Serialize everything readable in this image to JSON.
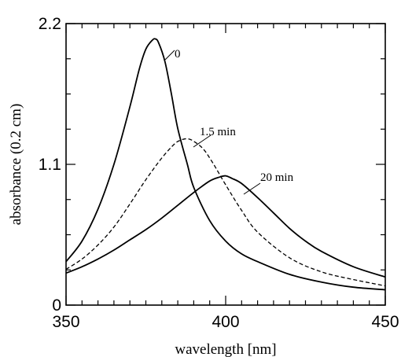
{
  "chart_data": {
    "type": "line",
    "xlabel": "wavelength [nm]",
    "ylabel": "absorbance (0.2 cm)",
    "xlim": [
      350,
      450
    ],
    "ylim": [
      0,
      2.2
    ],
    "x_ticks": [
      350,
      400,
      450
    ],
    "x_tick_labels": [
      "350",
      "400",
      "450"
    ],
    "y_ticks": [
      0,
      1.1,
      2.2
    ],
    "y_tick_labels": [
      "0",
      "1.1",
      "2.2"
    ],
    "grid": false,
    "series": [
      {
        "name": "0",
        "style": "solid",
        "x": [
          350,
          355,
          360,
          365,
          370,
          373,
          375,
          377,
          378,
          379,
          381,
          383,
          385,
          388,
          390,
          395,
          400,
          405,
          410,
          420,
          430,
          440,
          450
        ],
        "y": [
          0.34,
          0.5,
          0.75,
          1.1,
          1.55,
          1.85,
          2.0,
          2.07,
          2.08,
          2.05,
          1.9,
          1.65,
          1.38,
          1.1,
          0.92,
          0.66,
          0.5,
          0.4,
          0.34,
          0.24,
          0.18,
          0.14,
          0.12
        ]
      },
      {
        "name": "1.5 min",
        "style": "dashed",
        "x": [
          350,
          355,
          360,
          365,
          370,
          375,
          380,
          384,
          386,
          388,
          390,
          393,
          396,
          400,
          405,
          410,
          420,
          430,
          440,
          450
        ],
        "y": [
          0.28,
          0.36,
          0.47,
          0.61,
          0.79,
          0.98,
          1.15,
          1.26,
          1.29,
          1.3,
          1.28,
          1.22,
          1.11,
          0.94,
          0.74,
          0.57,
          0.37,
          0.26,
          0.2,
          0.15
        ]
      },
      {
        "name": "20 min",
        "style": "solid",
        "x": [
          350,
          355,
          360,
          365,
          370,
          375,
          380,
          385,
          390,
          395,
          398,
          400,
          402,
          405,
          410,
          415,
          420,
          425,
          430,
          440,
          450
        ],
        "y": [
          0.25,
          0.3,
          0.36,
          0.43,
          0.51,
          0.59,
          0.68,
          0.78,
          0.88,
          0.97,
          1.0,
          1.01,
          0.99,
          0.95,
          0.84,
          0.72,
          0.6,
          0.5,
          0.42,
          0.3,
          0.22
        ]
      }
    ],
    "annotations": [
      {
        "text": "0",
        "series": 0
      },
      {
        "text": "1.5 min",
        "series": 1
      },
      {
        "text": "20 min",
        "series": 2
      }
    ]
  }
}
